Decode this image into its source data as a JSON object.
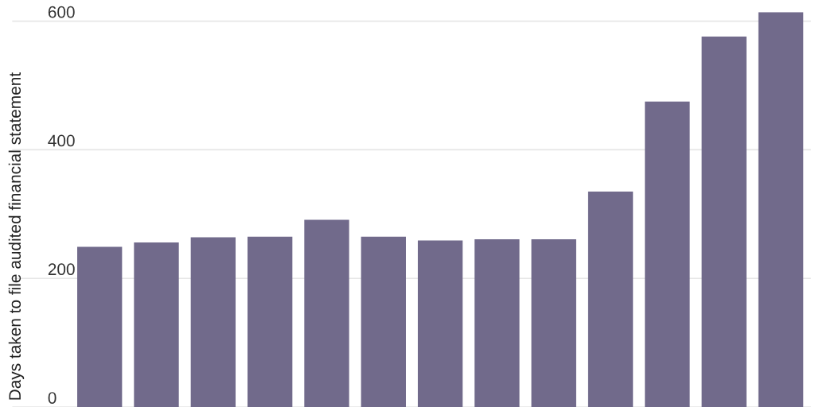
{
  "chart_data": {
    "type": "bar",
    "ylabel": "Days taken to file audited financial statement",
    "categories": [
      null,
      null,
      null,
      null,
      null,
      null,
      null,
      null,
      null,
      null,
      null,
      null,
      null
    ],
    "values": [
      249,
      256,
      264,
      265,
      291,
      265,
      259,
      261,
      261,
      335,
      475,
      576,
      614
    ],
    "color": "#716a8b",
    "ylim": [
      0,
      614
    ],
    "yticks": [
      0,
      200,
      400,
      600
    ],
    "grid": "y",
    "legend": false,
    "tick_labels": "y"
  }
}
